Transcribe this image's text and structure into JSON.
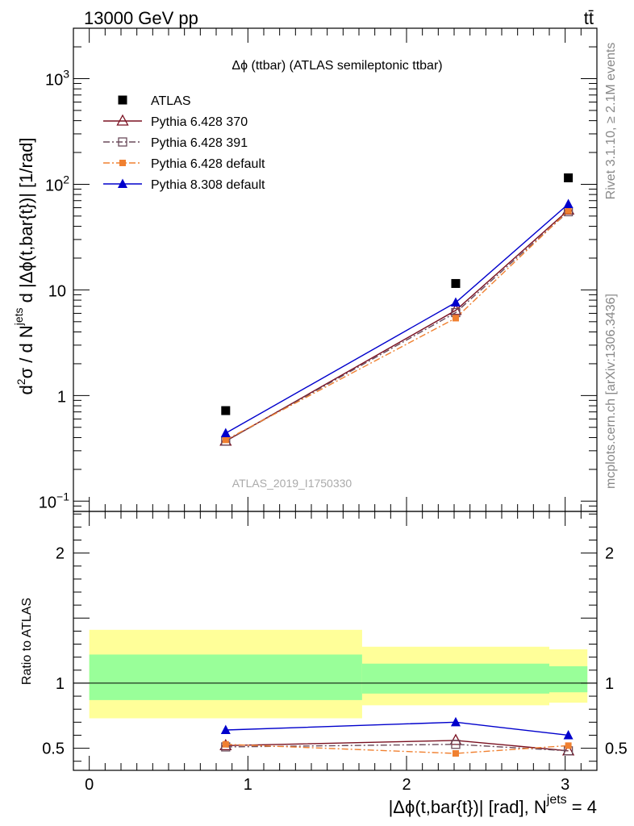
{
  "header": {
    "energy_label": "13000 GeV pp",
    "process_label": "tt̄"
  },
  "side_labels": {
    "rivet": "Rivet 3.1.10, ≥ 2.1M events",
    "mcplots": "mcplots.cern.ch [arXiv:1306.3436]"
  },
  "watermark": "ATLAS_2019_I1750330",
  "chart_data": [
    {
      "type": "line",
      "title": "Δϕ (ttbar) (ATLAS semileptonic ttbar)",
      "ylabel": "d²σ / d Nʲᵉᵗˢ d |Δϕ(t,bar{t})| [1/rad]",
      "ylabel_parts": {
        "d2sigma": "d",
        "sup2": "2",
        "sigma_part": "σ  /  d N",
        "sup_jets": "jets",
        "rest": " d |Δϕ(t,bar{t})| [1/rad]"
      },
      "yscale": "log",
      "ylim": [
        0.08,
        3000
      ],
      "xlim": [
        -0.1,
        3.2
      ],
      "yticks": [
        {
          "value": 0.1,
          "base": "10",
          "exp": "−1"
        },
        {
          "value": 1,
          "base": "1",
          "exp": ""
        },
        {
          "value": 10,
          "base": "10",
          "exp": ""
        },
        {
          "value": 100,
          "base": "10",
          "exp": "2"
        },
        {
          "value": 1000,
          "base": "10",
          "exp": "3"
        }
      ],
      "legend_position": "top-left",
      "x": [
        0.86,
        2.31,
        3.02
      ],
      "series": [
        {
          "name": "ATLAS",
          "values": [
            0.72,
            11.5,
            115
          ],
          "color": "#000000",
          "marker": "square-filled",
          "line": "none"
        },
        {
          "name": "Pythia 6.428 370",
          "values": [
            0.37,
            6.4,
            57
          ],
          "color": "#7a1020",
          "marker": "triangle-open",
          "line": "solid"
        },
        {
          "name": "Pythia 6.428 391",
          "values": [
            0.37,
            6.1,
            55
          ],
          "color": "#6a4a5a",
          "marker": "square-open",
          "line": "dashdot"
        },
        {
          "name": "Pythia 6.428 default",
          "values": [
            0.38,
            5.4,
            56
          ],
          "color": "#f08030",
          "marker": "square-filled-small",
          "line": "dashdot"
        },
        {
          "name": "Pythia 8.308 default",
          "values": [
            0.44,
            7.6,
            65
          ],
          "color": "#0000cc",
          "marker": "triangle-filled",
          "line": "solid"
        }
      ]
    },
    {
      "type": "line",
      "ylabel": "Ratio to ATLAS",
      "xlabel_main": "|Δϕ(t,bar{t})| [rad], N",
      "xlabel_sup": "jets",
      "xlabel_tail": " = 4",
      "xlim": [
        -0.1,
        3.2
      ],
      "ylim": [
        0.33,
        2.32
      ],
      "yticks": [
        0.5,
        1,
        2
      ],
      "ytick_labels": [
        "0.5",
        "1",
        "2"
      ],
      "xticks": [
        0,
        1,
        2,
        3
      ],
      "xtick_labels": [
        "0",
        "1",
        "2",
        "3"
      ],
      "bands": [
        {
          "x0": 0.0,
          "x1": 1.72,
          "yellow": [
            0.73,
            1.41
          ],
          "green": [
            0.87,
            1.22
          ]
        },
        {
          "x0": 1.72,
          "x1": 2.9,
          "yellow": [
            0.83,
            1.28
          ],
          "green": [
            0.92,
            1.15
          ]
        },
        {
          "x0": 2.9,
          "x1": 3.14,
          "yellow": [
            0.85,
            1.26
          ],
          "green": [
            0.93,
            1.13
          ]
        }
      ],
      "x": [
        0.86,
        2.31,
        3.02
      ],
      "series": [
        {
          "name": "Pythia 6.428 370",
          "values": [
            0.52,
            0.56,
            0.48
          ],
          "color": "#7a1020",
          "marker": "triangle-open",
          "line": "solid"
        },
        {
          "name": "Pythia 6.428 391",
          "values": [
            0.51,
            0.53,
            0.48
          ],
          "color": "#6a4a5a",
          "marker": "square-open",
          "line": "dashdot"
        },
        {
          "name": "Pythia 6.428 default",
          "values": [
            0.53,
            0.46,
            0.52
          ],
          "color": "#f08030",
          "marker": "square-filled-small",
          "line": "dashdot"
        },
        {
          "name": "Pythia 8.308 default",
          "values": [
            0.64,
            0.7,
            0.6
          ],
          "color": "#0000cc",
          "marker": "triangle-filled",
          "line": "solid"
        }
      ]
    }
  ]
}
